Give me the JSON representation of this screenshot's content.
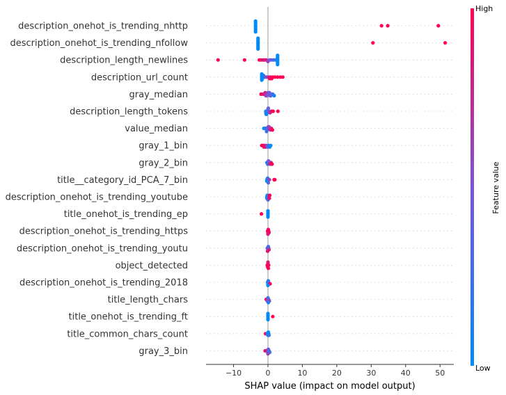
{
  "chart_data": {
    "type": "scatter",
    "subtype": "shap-beeswarm",
    "xlabel": "SHAP value (impact on model output)",
    "xlim": [
      -18,
      54
    ],
    "xticks": [
      -10,
      0,
      10,
      20,
      30,
      40,
      50
    ],
    "zero_line": 0,
    "colorbar": {
      "label": "Feature value",
      "high_label": "High",
      "low_label": "Low",
      "low_color": "#008bfb",
      "high_color": "#ff0052"
    },
    "features": [
      {
        "name": "description_onehot_is_trending_nhttp",
        "points": [
          {
            "x": -3.6,
            "v": 0.0
          },
          {
            "x": -3.6,
            "v": 0.0
          },
          {
            "x": -3.6,
            "v": 0.0
          },
          {
            "x": -3.6,
            "v": 0.0
          },
          {
            "x": -3.6,
            "v": 0.0
          },
          {
            "x": -3.6,
            "v": 0.0
          },
          {
            "x": -3.6,
            "v": 0.0
          },
          {
            "x": -3.6,
            "v": 0.0
          },
          {
            "x": 33.0,
            "v": 1.0
          },
          {
            "x": 34.8,
            "v": 1.0
          },
          {
            "x": 49.5,
            "v": 1.0
          }
        ]
      },
      {
        "name": "description_onehot_is_trending_nfollow",
        "points": [
          {
            "x": -2.9,
            "v": 0.0
          },
          {
            "x": -2.9,
            "v": 0.0
          },
          {
            "x": -2.9,
            "v": 0.0
          },
          {
            "x": -2.9,
            "v": 0.0
          },
          {
            "x": -2.9,
            "v": 0.0
          },
          {
            "x": -2.9,
            "v": 0.0
          },
          {
            "x": -2.9,
            "v": 0.0
          },
          {
            "x": -2.9,
            "v": 0.0
          },
          {
            "x": 30.5,
            "v": 1.0
          },
          {
            "x": 51.5,
            "v": 1.0
          }
        ]
      },
      {
        "name": "description_length_newlines",
        "points": [
          {
            "x": -14.5,
            "v": 1.0
          },
          {
            "x": -6.8,
            "v": 1.0
          },
          {
            "x": -2.5,
            "v": 1.0
          },
          {
            "x": -2.0,
            "v": 0.9
          },
          {
            "x": -1.4,
            "v": 0.95
          },
          {
            "x": -1.0,
            "v": 0.8
          },
          {
            "x": -0.5,
            "v": 0.85
          },
          {
            "x": 0.0,
            "v": 0.6
          },
          {
            "x": 0.5,
            "v": 0.5
          },
          {
            "x": 1.0,
            "v": 0.4
          },
          {
            "x": 1.6,
            "v": 0.3
          },
          {
            "x": 2.2,
            "v": 0.2
          },
          {
            "x": 2.8,
            "v": 0.0
          },
          {
            "x": 2.8,
            "v": 0.0
          },
          {
            "x": 2.8,
            "v": 0.0
          },
          {
            "x": 2.8,
            "v": 0.0
          },
          {
            "x": 2.8,
            "v": 0.0
          },
          {
            "x": 2.8,
            "v": 0.0
          },
          {
            "x": 2.8,
            "v": 0.0
          }
        ]
      },
      {
        "name": "description_url_count",
        "points": [
          {
            "x": -1.8,
            "v": 0.0
          },
          {
            "x": -1.8,
            "v": 0.0
          },
          {
            "x": -1.8,
            "v": 0.0
          },
          {
            "x": -1.8,
            "v": 0.0
          },
          {
            "x": -1.8,
            "v": 0.0
          },
          {
            "x": -1.6,
            "v": 0.0
          },
          {
            "x": -1.6,
            "v": 0.0
          },
          {
            "x": -1.3,
            "v": 0.1
          },
          {
            "x": -0.8,
            "v": 0.3
          },
          {
            "x": -0.3,
            "v": 0.6
          },
          {
            "x": 0.3,
            "v": 0.8
          },
          {
            "x": 0.8,
            "v": 0.9
          },
          {
            "x": 1.4,
            "v": 1.0
          },
          {
            "x": 2.0,
            "v": 1.0
          },
          {
            "x": 2.8,
            "v": 1.0
          },
          {
            "x": 3.6,
            "v": 1.0
          },
          {
            "x": 4.3,
            "v": 1.0
          },
          {
            "x": 0.5,
            "v": 0.95
          },
          {
            "x": 1.1,
            "v": 1.0
          }
        ]
      },
      {
        "name": "gray_median",
        "points": [
          {
            "x": -2.0,
            "v": 1.0
          },
          {
            "x": -1.4,
            "v": 0.9
          },
          {
            "x": -1.0,
            "v": 0.8
          },
          {
            "x": -0.6,
            "v": 0.7
          },
          {
            "x": -0.2,
            "v": 0.6
          },
          {
            "x": 0.2,
            "v": 0.5
          },
          {
            "x": 0.6,
            "v": 0.45
          },
          {
            "x": 1.0,
            "v": 0.3
          },
          {
            "x": 1.4,
            "v": 0.2
          },
          {
            "x": 1.8,
            "v": 0.1
          },
          {
            "x": -0.4,
            "v": 0.55
          },
          {
            "x": 0.0,
            "v": 0.5
          },
          {
            "x": 0.4,
            "v": 0.4
          },
          {
            "x": -0.8,
            "v": 0.75
          },
          {
            "x": 0.8,
            "v": 0.35
          }
        ]
      },
      {
        "name": "description_length_tokens",
        "points": [
          {
            "x": -0.6,
            "v": 0.0
          },
          {
            "x": -0.6,
            "v": 0.0
          },
          {
            "x": -0.4,
            "v": 0.1
          },
          {
            "x": -0.2,
            "v": 0.2
          },
          {
            "x": 0.0,
            "v": 0.3
          },
          {
            "x": 0.3,
            "v": 0.5
          },
          {
            "x": 0.6,
            "v": 0.7
          },
          {
            "x": 1.0,
            "v": 0.9
          },
          {
            "x": 1.5,
            "v": 1.0
          },
          {
            "x": 2.9,
            "v": 1.0
          },
          {
            "x": -0.5,
            "v": 0.05
          },
          {
            "x": 0.1,
            "v": 0.4
          }
        ]
      },
      {
        "name": "value_median",
        "points": [
          {
            "x": -1.2,
            "v": 0.0
          },
          {
            "x": -0.8,
            "v": 0.1
          },
          {
            "x": -0.5,
            "v": 0.2
          },
          {
            "x": -0.2,
            "v": 0.35
          },
          {
            "x": 0.1,
            "v": 0.5
          },
          {
            "x": 0.4,
            "v": 0.65
          },
          {
            "x": 0.7,
            "v": 0.8
          },
          {
            "x": 1.0,
            "v": 0.9
          },
          {
            "x": 1.3,
            "v": 1.0
          },
          {
            "x": -0.4,
            "v": 0.25
          },
          {
            "x": 0.3,
            "v": 0.6
          }
        ]
      },
      {
        "name": "gray_1_bin",
        "points": [
          {
            "x": -1.8,
            "v": 1.0
          },
          {
            "x": -1.4,
            "v": 1.0
          },
          {
            "x": -1.0,
            "v": 0.95
          },
          {
            "x": -0.7,
            "v": 0.8
          },
          {
            "x": -0.4,
            "v": 0.6
          },
          {
            "x": -0.1,
            "v": 0.4
          },
          {
            "x": 0.2,
            "v": 0.2
          },
          {
            "x": 0.5,
            "v": 0.1
          },
          {
            "x": 0.8,
            "v": 0.0
          },
          {
            "x": -1.2,
            "v": 0.9
          }
        ]
      },
      {
        "name": "gray_2_bin",
        "points": [
          {
            "x": -0.3,
            "v": 0.0
          },
          {
            "x": -0.1,
            "v": 0.2
          },
          {
            "x": 0.1,
            "v": 0.4
          },
          {
            "x": 0.3,
            "v": 0.6
          },
          {
            "x": 0.6,
            "v": 0.8
          },
          {
            "x": 0.9,
            "v": 0.9
          },
          {
            "x": 1.2,
            "v": 1.0
          },
          {
            "x": 0.2,
            "v": 0.5
          }
        ]
      },
      {
        "name": "title__category_id_PCA_7_bin",
        "points": [
          {
            "x": -0.3,
            "v": 0.0
          },
          {
            "x": -0.3,
            "v": 0.0
          },
          {
            "x": -0.1,
            "v": 0.2
          },
          {
            "x": 0.1,
            "v": 0.3
          },
          {
            "x": 0.4,
            "v": 0.6
          },
          {
            "x": 1.8,
            "v": 1.0
          },
          {
            "x": 2.0,
            "v": 1.0
          }
        ]
      },
      {
        "name": "description_onehot_is_trending_youtube",
        "points": [
          {
            "x": -0.3,
            "v": 0.0
          },
          {
            "x": -0.3,
            "v": 0.0
          },
          {
            "x": -0.2,
            "v": 0.0
          },
          {
            "x": 0.0,
            "v": 0.3
          },
          {
            "x": 0.2,
            "v": 0.6
          },
          {
            "x": 0.4,
            "v": 0.9
          },
          {
            "x": 0.5,
            "v": 1.0
          }
        ]
      },
      {
        "name": "title_onehot_is_trending_ep",
        "points": [
          {
            "x": 0.0,
            "v": 0.0
          },
          {
            "x": 0.0,
            "v": 0.0
          },
          {
            "x": 0.0,
            "v": 0.0
          },
          {
            "x": 0.0,
            "v": 0.0
          },
          {
            "x": 0.0,
            "v": 0.0
          },
          {
            "x": -1.9,
            "v": 1.0
          }
        ]
      },
      {
        "name": "description_onehot_is_trending_https",
        "points": [
          {
            "x": -0.1,
            "v": 1.0
          },
          {
            "x": 0.0,
            "v": 1.0
          },
          {
            "x": 0.1,
            "v": 0.9
          },
          {
            "x": 0.2,
            "v": 1.0
          },
          {
            "x": 0.3,
            "v": 0.95
          },
          {
            "x": 0.0,
            "v": 0.85
          }
        ]
      },
      {
        "name": "description_onehot_is_trending_youtu",
        "points": [
          {
            "x": -0.2,
            "v": 0.4
          },
          {
            "x": 0.0,
            "v": 0.5
          },
          {
            "x": 0.2,
            "v": 0.6
          },
          {
            "x": 0.3,
            "v": 0.8
          },
          {
            "x": 0.1,
            "v": 0.3
          },
          {
            "x": -0.1,
            "v": 0.9
          }
        ]
      },
      {
        "name": "object_detected",
        "points": [
          {
            "x": -0.2,
            "v": 1.0
          },
          {
            "x": -0.1,
            "v": 1.0
          },
          {
            "x": 0.0,
            "v": 0.9
          },
          {
            "x": 0.1,
            "v": 1.0
          },
          {
            "x": 0.2,
            "v": 0.95
          },
          {
            "x": 0.0,
            "v": 0.85
          }
        ]
      },
      {
        "name": "description_onehot_is_trending_2018",
        "points": [
          {
            "x": -0.1,
            "v": 0.0
          },
          {
            "x": 0.0,
            "v": 0.0
          },
          {
            "x": 0.1,
            "v": 0.1
          },
          {
            "x": 0.2,
            "v": 0.3
          },
          {
            "x": 0.6,
            "v": 1.0
          },
          {
            "x": 0.0,
            "v": 0.0
          }
        ]
      },
      {
        "name": "title_length_chars",
        "points": [
          {
            "x": -0.5,
            "v": 1.0
          },
          {
            "x": -0.2,
            "v": 0.5
          },
          {
            "x": 0.0,
            "v": 0.2
          },
          {
            "x": 0.2,
            "v": 0.4
          },
          {
            "x": 0.4,
            "v": 0.6
          },
          {
            "x": 0.1,
            "v": 0.1
          }
        ]
      },
      {
        "name": "title_onehot_is_trending_ft",
        "points": [
          {
            "x": 0.0,
            "v": 0.0
          },
          {
            "x": 0.0,
            "v": 0.0
          },
          {
            "x": 0.0,
            "v": 0.0
          },
          {
            "x": 0.0,
            "v": 0.0
          },
          {
            "x": 0.0,
            "v": 0.0
          },
          {
            "x": 1.4,
            "v": 1.0
          }
        ]
      },
      {
        "name": "title_common_chars_count",
        "points": [
          {
            "x": -0.7,
            "v": 1.0
          },
          {
            "x": -0.2,
            "v": 0.3
          },
          {
            "x": 0.0,
            "v": 0.1
          },
          {
            "x": 0.2,
            "v": 0.0
          },
          {
            "x": 0.3,
            "v": 0.2
          },
          {
            "x": 0.1,
            "v": 0.0
          }
        ]
      },
      {
        "name": "gray_3_bin",
        "points": [
          {
            "x": -0.8,
            "v": 1.0
          },
          {
            "x": -0.4,
            "v": 0.8
          },
          {
            "x": -0.1,
            "v": 0.5
          },
          {
            "x": 0.1,
            "v": 0.4
          },
          {
            "x": 0.3,
            "v": 0.3
          },
          {
            "x": 0.5,
            "v": 0.2
          },
          {
            "x": 0.0,
            "v": 0.6
          }
        ]
      }
    ]
  }
}
